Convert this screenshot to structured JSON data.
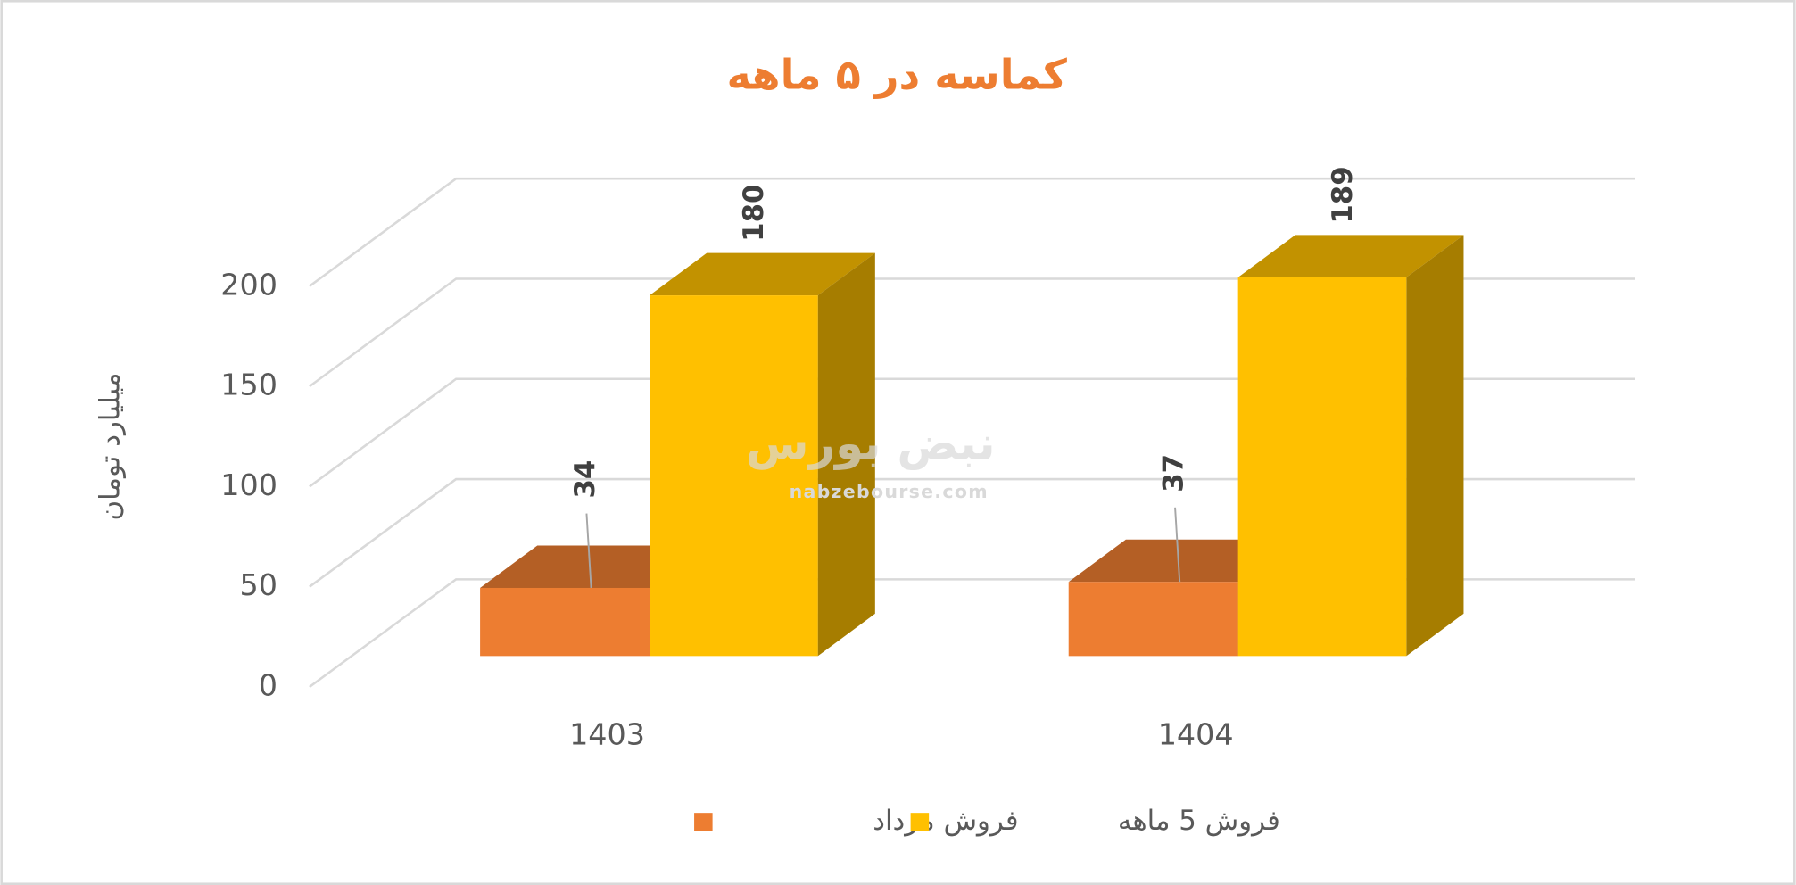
{
  "chart_data": {
    "type": "bar3d",
    "title": "کماسه در ۵ ماهه",
    "y_axis_label": "میلیارد تومان",
    "categories": [
      "1403",
      "1404"
    ],
    "series": [
      {
        "name": "فروش مرداد",
        "color": "#ED7D31",
        "values": [
          34,
          37
        ]
      },
      {
        "name": "فروش 5 ماهه",
        "color": "#FFC000",
        "values": [
          180,
          189
        ]
      }
    ],
    "ylim": [
      0,
      200
    ],
    "yticks": [
      0,
      50,
      100,
      150,
      200
    ],
    "grid": true,
    "legend": "bottom",
    "watermark": {
      "logo": "نبض بورس",
      "url": "nabzebourse.com"
    }
  }
}
